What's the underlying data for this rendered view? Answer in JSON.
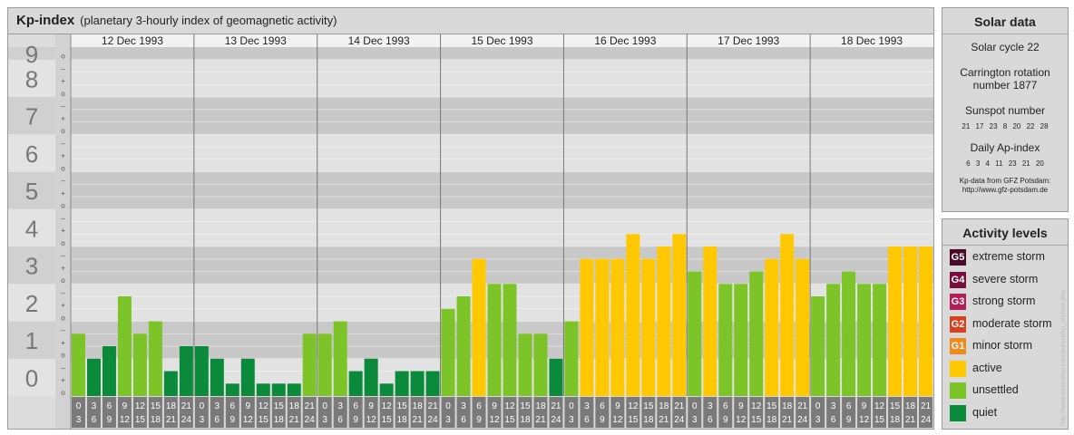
{
  "header": {
    "title": "Kp-index",
    "subtitle": "(planetary 3-hourly index of geomagnetic activity)"
  },
  "chart_data": {
    "type": "bar",
    "y_labels": [
      "0",
      "1",
      "2",
      "3",
      "4",
      "5",
      "6",
      "7",
      "8",
      "9"
    ],
    "minor_labels": [
      "o",
      "+",
      "–"
    ],
    "ylim": [
      0,
      9.333
    ],
    "days": [
      "12 Dec 1993",
      "13 Dec 1993",
      "14 Dec 1993",
      "15 Dec 1993",
      "16 Dec 1993",
      "17 Dec 1993",
      "18 Dec 1993"
    ],
    "slot_starts": [
      "0",
      "3",
      "6",
      "9",
      "12",
      "15",
      "18",
      "21"
    ],
    "slot_ends": [
      "3",
      "6",
      "9",
      "12",
      "15",
      "18",
      "21",
      "24"
    ],
    "values": [
      [
        1.667,
        1.0,
        1.333,
        2.667,
        1.667,
        2.0,
        0.667,
        1.333
      ],
      [
        1.333,
        1.0,
        0.333,
        1.0,
        0.333,
        0.333,
        0.333,
        1.667
      ],
      [
        1.667,
        2.0,
        0.667,
        1.0,
        0.333,
        0.667,
        0.667,
        0.667
      ],
      [
        2.333,
        2.667,
        3.667,
        3.0,
        3.0,
        1.667,
        1.667,
        1.0
      ],
      [
        2.0,
        3.667,
        3.667,
        3.667,
        4.333,
        3.667,
        4.0,
        4.333
      ],
      [
        3.333,
        4.0,
        3.0,
        3.0,
        3.333,
        3.667,
        4.333,
        3.667
      ],
      [
        2.667,
        3.0,
        3.333,
        3.0,
        3.0,
        4.0,
        4.0,
        4.0
      ]
    ],
    "colors": {
      "quiet": "#0b8a3c",
      "unsettled": "#7cc427",
      "active": "#ffc800",
      "band_dark": "#c8c8c8",
      "band_light": "#e2e2e2"
    }
  },
  "solar": {
    "title": "Solar data",
    "cycle": "Solar cycle 22",
    "carrington_1": "Carrington rotation",
    "carrington_2": "number 1877",
    "sunspot_label": "Sunspot number",
    "sunspot_values": "21 17 23 8 20 22 28",
    "ap_label": "Daily Ap-index",
    "ap_values": "6 3 4 11 23 21 20",
    "credit_1": "Kp-data from GFZ Potsdam:",
    "credit_2": "http://www.gfz-potsdam.de"
  },
  "activity": {
    "title": "Activity levels",
    "levels": [
      {
        "badge": "G5",
        "label": "extreme storm",
        "color": "#4a0a2a"
      },
      {
        "badge": "G4",
        "label": "severe storm",
        "color": "#7a0f3f"
      },
      {
        "badge": "G3",
        "label": "strong storm",
        "color": "#b31e5a"
      },
      {
        "badge": "G2",
        "label": "moderate storm",
        "color": "#d9401e"
      },
      {
        "badge": "G1",
        "label": "minor storm",
        "color": "#f08a1c"
      },
      {
        "badge": "",
        "label": "active",
        "color": "#ffc800"
      },
      {
        "badge": "",
        "label": "unsettled",
        "color": "#7cc427"
      },
      {
        "badge": "",
        "label": "quiet",
        "color": "#0b8a3c"
      }
    ]
  },
  "watermark": "http://www.tresvalley.com/aurora/kp_archive.php"
}
